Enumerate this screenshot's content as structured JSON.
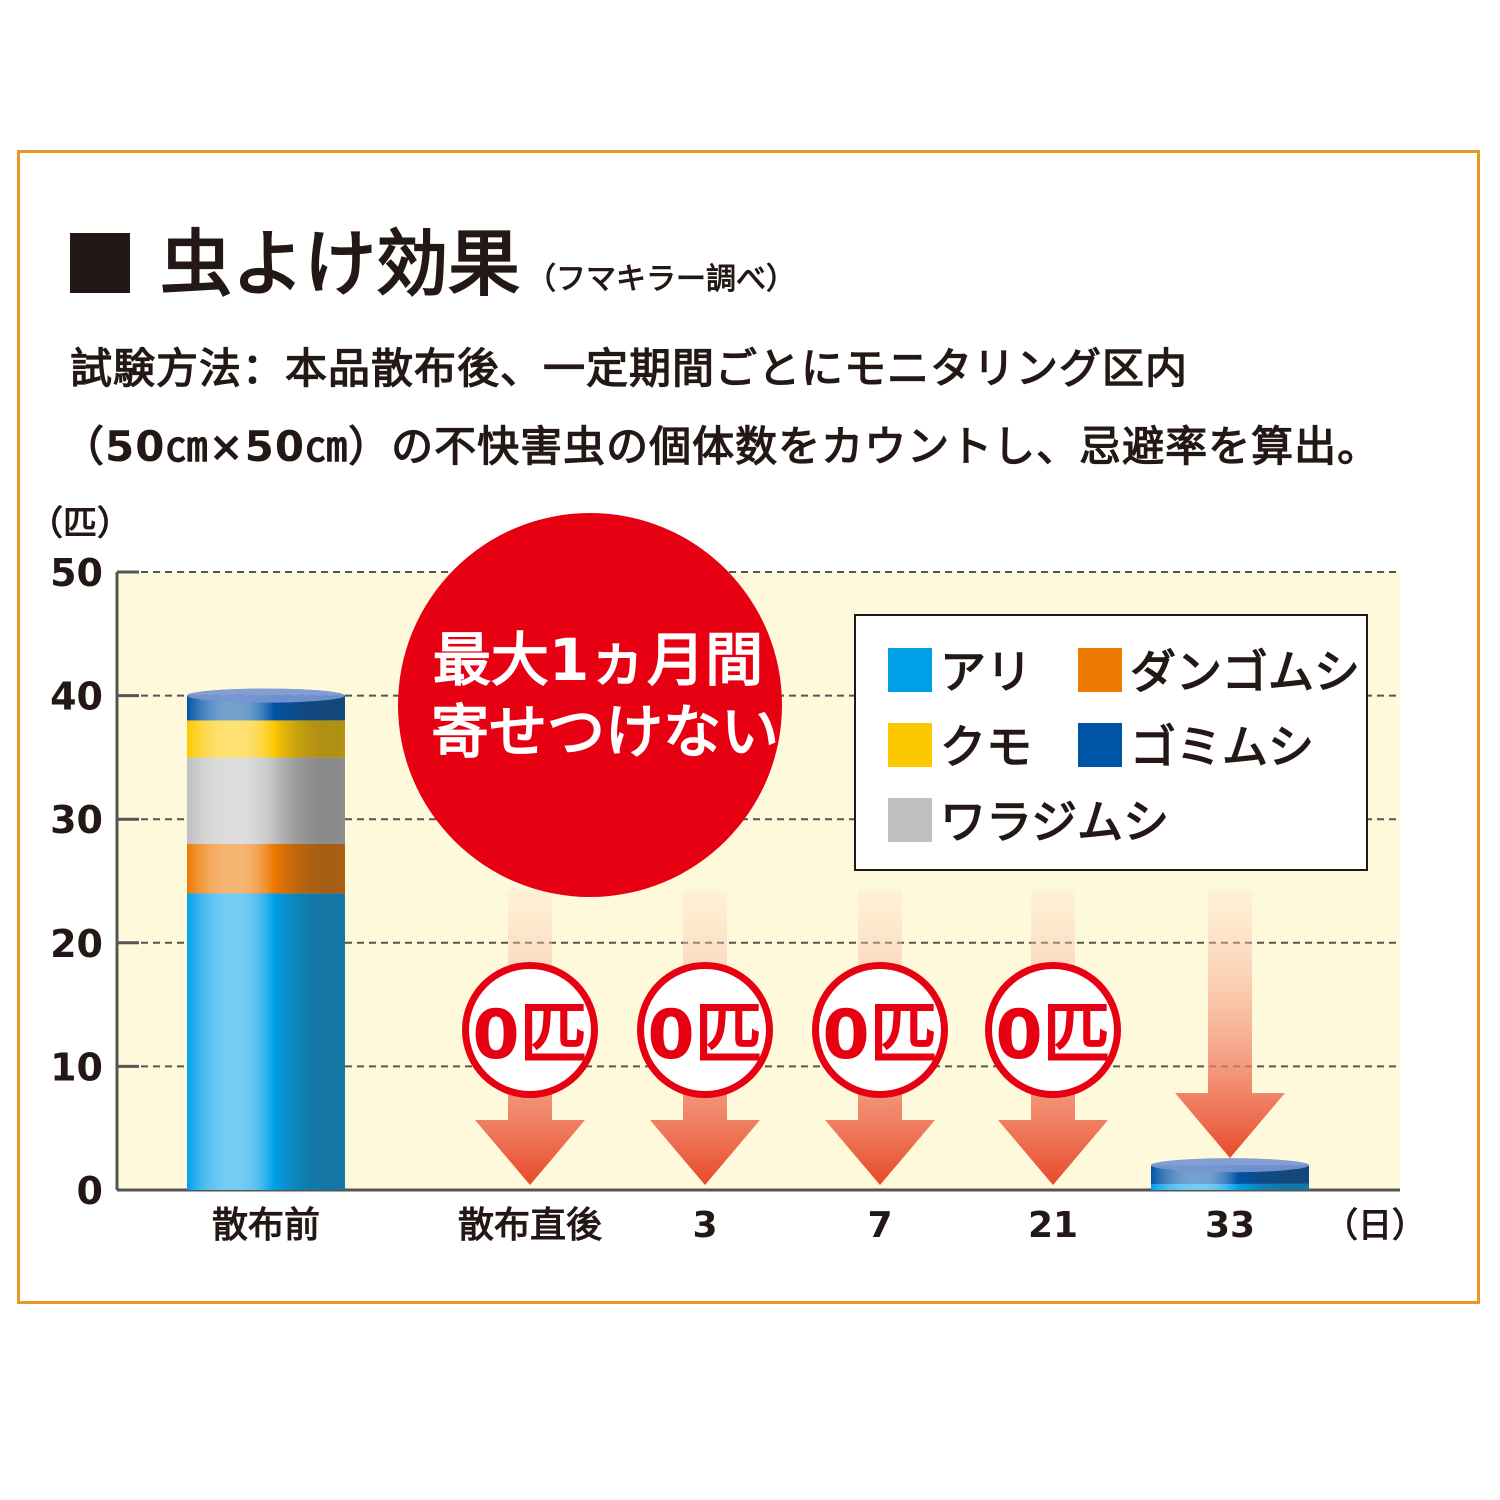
{
  "heading": {
    "title": "虫よけ効果",
    "subtitle": "（フマキラー調べ）"
  },
  "method": {
    "line1": "試験方法：本品散布後、一定期間ごとにモニタリング区内",
    "line2": "（50㎝×50㎝）の不快害虫の個体数をカウントし、忌避率を算出。"
  },
  "callout": {
    "line1": "最大1ヵ月間",
    "line2": "寄せつけない",
    "color": "#e60012"
  },
  "zero_badge_label": "0匹",
  "chart_data": {
    "type": "bar",
    "stacked": true,
    "ylabel": "（匹）",
    "xlabel": "（日）",
    "ylim": [
      0,
      50
    ],
    "yticks": [
      "0",
      "10",
      "20",
      "30",
      "40",
      "50"
    ],
    "grid": true,
    "legend_position": "top-right",
    "categories": [
      "散布前",
      "散布直後",
      "3",
      "7",
      "21",
      "33"
    ],
    "series": [
      {
        "name": "アリ",
        "color": "#00a0e9",
        "values": [
          24,
          0,
          0,
          0,
          0,
          0.5
        ]
      },
      {
        "name": "ダンゴムシ",
        "color": "#ee7800",
        "values": [
          4,
          0,
          0,
          0,
          0,
          0
        ]
      },
      {
        "name": "ワラジムシ",
        "color": "#c0c0c0",
        "values": [
          7,
          0,
          0,
          0,
          0,
          0
        ]
      },
      {
        "name": "クモ",
        "color": "#fcc800",
        "values": [
          3,
          0,
          0,
          0,
          0,
          0
        ]
      },
      {
        "name": "ゴミムシ",
        "color": "#0054a6",
        "values": [
          2,
          0,
          0,
          0,
          0,
          1.5
        ]
      }
    ],
    "zero_labels_on": [
      "散布直後",
      "3",
      "7",
      "21"
    ]
  }
}
